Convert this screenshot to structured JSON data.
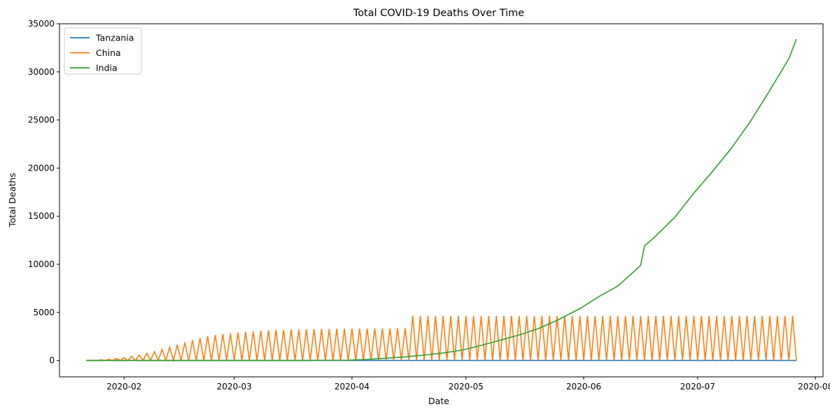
{
  "chart_data": {
    "type": "line",
    "title": "Total COVID-19 Deaths Over Time",
    "xlabel": "Date",
    "ylabel": "Total Deaths",
    "x_ticks": [
      "2020-02",
      "2020-03",
      "2020-04",
      "2020-05",
      "2020-06",
      "2020-07",
      "2020-08"
    ],
    "x_tick_dates": [
      "2020-02-01",
      "2020-03-01",
      "2020-04-01",
      "2020-05-01",
      "2020-06-01",
      "2020-07-01",
      "2020-08-01"
    ],
    "xlim": [
      "2020-01-15",
      "2020-08-03"
    ],
    "ylim": [
      -1700,
      35000
    ],
    "y_ticks": [
      0,
      5000,
      10000,
      15000,
      20000,
      25000,
      30000,
      35000
    ],
    "grid": false,
    "legend_position": "top-left",
    "series": [
      {
        "name": "Tanzania",
        "color": "#1f77b4",
        "style": "line",
        "points": [
          [
            "2020-01-22",
            0
          ],
          [
            "2020-07-27",
            0
          ]
        ]
      },
      {
        "name": "China",
        "color": "#ff7f0e",
        "style": "spikes",
        "date_range": [
          "2020-01-22",
          "2020-07-27"
        ],
        "note_values": "daily cumulative value, alternating with 0 on adjacent days",
        "points": [
          [
            "2020-01-22",
            17
          ],
          [
            "2020-01-25",
            41
          ],
          [
            "2020-01-28",
            132
          ],
          [
            "2020-02-01",
            304
          ],
          [
            "2020-02-05",
            565
          ],
          [
            "2020-02-10",
            1016
          ],
          [
            "2020-02-14",
            1523
          ],
          [
            "2020-02-18",
            2004
          ],
          [
            "2020-02-22",
            2443
          ],
          [
            "2020-02-26",
            2715
          ],
          [
            "2020-03-01",
            2870
          ],
          [
            "2020-03-05",
            3013
          ],
          [
            "2020-03-10",
            3139
          ],
          [
            "2020-03-15",
            3199
          ],
          [
            "2020-03-20",
            3248
          ],
          [
            "2020-03-25",
            3285
          ],
          [
            "2020-04-01",
            3316
          ],
          [
            "2020-04-10",
            3339
          ],
          [
            "2020-04-16",
            3342
          ],
          [
            "2020-04-17",
            4632
          ],
          [
            "2020-05-15",
            4633
          ],
          [
            "2020-06-15",
            4634
          ],
          [
            "2020-07-27",
            4634
          ]
        ]
      },
      {
        "name": "India",
        "color": "#2ca02c",
        "style": "line",
        "points": [
          [
            "2020-01-22",
            0
          ],
          [
            "2020-03-12",
            1
          ],
          [
            "2020-03-20",
            4
          ],
          [
            "2020-03-31",
            35
          ],
          [
            "2020-04-05",
            109
          ],
          [
            "2020-04-10",
            239
          ],
          [
            "2020-04-15",
            377
          ],
          [
            "2020-04-20",
            559
          ],
          [
            "2020-04-25",
            779
          ],
          [
            "2020-04-30",
            1079
          ],
          [
            "2020-05-05",
            1568
          ],
          [
            "2020-05-10",
            2109
          ],
          [
            "2020-05-15",
            2649
          ],
          [
            "2020-05-20",
            3303
          ],
          [
            "2020-05-25",
            4167
          ],
          [
            "2020-05-31",
            5394
          ],
          [
            "2020-06-05",
            6642
          ],
          [
            "2020-06-10",
            7745
          ],
          [
            "2020-06-15",
            9520
          ],
          [
            "2020-06-16",
            9900
          ],
          [
            "2020-06-17",
            11903
          ],
          [
            "2020-06-20",
            12948
          ],
          [
            "2020-06-25",
            14894
          ],
          [
            "2020-06-30",
            17400
          ],
          [
            "2020-07-05",
            19693
          ],
          [
            "2020-07-10",
            22123
          ],
          [
            "2020-07-15",
            24915
          ],
          [
            "2020-07-20",
            28084
          ],
          [
            "2020-07-25",
            31358
          ],
          [
            "2020-07-27",
            33408
          ]
        ]
      }
    ]
  }
}
